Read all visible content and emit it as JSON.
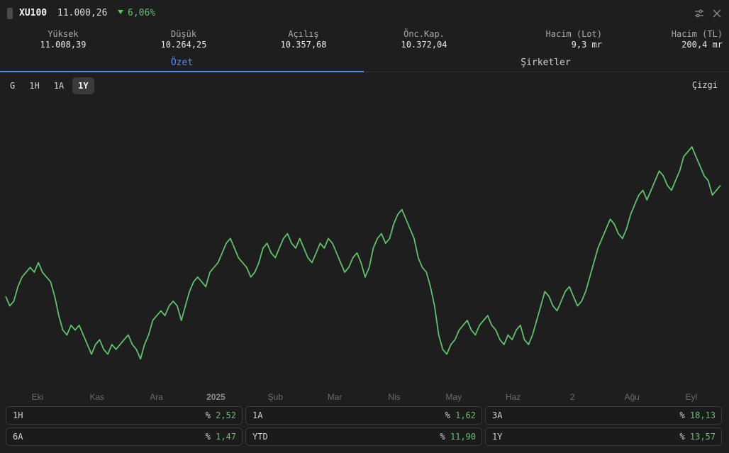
{
  "header": {
    "symbol": "XU100",
    "price": "11.000,26",
    "change": "6,06%",
    "change_color": "#5ec26a"
  },
  "stats": [
    {
      "label": "Yüksek",
      "value": "11.008,39"
    },
    {
      "label": "Düşük",
      "value": "10.264,25"
    },
    {
      "label": "Açılış",
      "value": "10.357,68"
    },
    {
      "label": "Önc.Kap.",
      "value": "10.372,04"
    },
    {
      "label": "Hacim (Lot)",
      "value": "9,3 mr"
    },
    {
      "label": "Hacim (TL)",
      "value": "200,4 mr"
    }
  ],
  "tabs": [
    {
      "label": "Özet",
      "active": true
    },
    {
      "label": "Şirketler",
      "active": false
    }
  ],
  "ranges": [
    {
      "label": "G",
      "active": false
    },
    {
      "label": "1H",
      "active": false
    },
    {
      "label": "1A",
      "active": false
    },
    {
      "label": "1Y",
      "active": true
    }
  ],
  "chart_type_label": "Çizgi",
  "chart_data": {
    "type": "line",
    "line_color": "#5ec26a",
    "grid": false,
    "x_ticks": [
      "Eki",
      "Kas",
      "Ara",
      "2025",
      "Şub",
      "Mar",
      "Nis",
      "May",
      "Haz",
      "2",
      "Ağu",
      "Eyl"
    ],
    "x_tick_emphasis": [
      "2025"
    ],
    "values": [
      0.4,
      0.38,
      0.39,
      0.42,
      0.44,
      0.45,
      0.46,
      0.45,
      0.47,
      0.45,
      0.44,
      0.43,
      0.4,
      0.36,
      0.33,
      0.32,
      0.34,
      0.33,
      0.34,
      0.32,
      0.3,
      0.28,
      0.3,
      0.31,
      0.29,
      0.28,
      0.3,
      0.29,
      0.3,
      0.31,
      0.32,
      0.3,
      0.29,
      0.27,
      0.3,
      0.32,
      0.35,
      0.36,
      0.37,
      0.36,
      0.38,
      0.39,
      0.38,
      0.35,
      0.38,
      0.41,
      0.43,
      0.44,
      0.43,
      0.42,
      0.45,
      0.46,
      0.47,
      0.49,
      0.51,
      0.52,
      0.5,
      0.48,
      0.47,
      0.46,
      0.44,
      0.45,
      0.47,
      0.5,
      0.51,
      0.49,
      0.48,
      0.5,
      0.52,
      0.53,
      0.51,
      0.5,
      0.52,
      0.5,
      0.48,
      0.47,
      0.49,
      0.51,
      0.5,
      0.52,
      0.51,
      0.49,
      0.47,
      0.45,
      0.46,
      0.48,
      0.49,
      0.47,
      0.44,
      0.46,
      0.5,
      0.52,
      0.53,
      0.51,
      0.52,
      0.55,
      0.57,
      0.58,
      0.56,
      0.54,
      0.52,
      0.48,
      0.46,
      0.45,
      0.42,
      0.38,
      0.32,
      0.29,
      0.28,
      0.3,
      0.31,
      0.33,
      0.34,
      0.35,
      0.33,
      0.32,
      0.34,
      0.35,
      0.36,
      0.34,
      0.33,
      0.31,
      0.3,
      0.32,
      0.31,
      0.33,
      0.34,
      0.31,
      0.3,
      0.32,
      0.35,
      0.38,
      0.41,
      0.4,
      0.38,
      0.37,
      0.39,
      0.41,
      0.42,
      0.4,
      0.38,
      0.39,
      0.41,
      0.44,
      0.47,
      0.5,
      0.52,
      0.54,
      0.56,
      0.55,
      0.53,
      0.52,
      0.54,
      0.57,
      0.59,
      0.61,
      0.62,
      0.6,
      0.62,
      0.64,
      0.66,
      0.65,
      0.63,
      0.62,
      0.64,
      0.66,
      0.69,
      0.7,
      0.71,
      0.69,
      0.67,
      0.65,
      0.64,
      0.61,
      0.62,
      0.63
    ],
    "ylim": [
      0.25,
      0.75
    ]
  },
  "performance": [
    {
      "label": "1H",
      "value": "2,52"
    },
    {
      "label": "1A",
      "value": "1,62"
    },
    {
      "label": "3A",
      "value": "18,13"
    },
    {
      "label": "6A",
      "value": "1,47"
    },
    {
      "label": "YTD",
      "value": "11,90"
    },
    {
      "label": "1Y",
      "value": "13,57"
    }
  ],
  "percent_sign": "%"
}
